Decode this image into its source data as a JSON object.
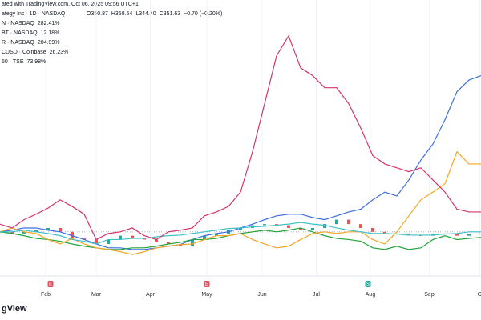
{
  "chart_data": {
    "type": "line",
    "title": "ated with TradingView.com, Oct 06, 2025 09:56 UTC+1",
    "subtitle": "ategy Inc · 1D · NASDAQ",
    "ohlc": [
      "O350.87",
      "H358.54",
      "L344.40",
      "C351.63",
      "−0.70 (−0.20%)"
    ],
    "watermark": "gView",
    "ylim": [
      -80,
      420
    ],
    "xlim": [
      0,
      40
    ],
    "xticks": [
      {
        "value": 3.8,
        "label": "Feb"
      },
      {
        "value": 8,
        "label": "Mar"
      },
      {
        "value": 12.5,
        "label": "Apr"
      },
      {
        "value": 17.2,
        "label": "May"
      },
      {
        "value": 21.8,
        "label": "Jun"
      },
      {
        "value": 26.3,
        "label": "Jul"
      },
      {
        "value": 30.8,
        "label": "Aug"
      },
      {
        "value": 35.7,
        "label": "Sep"
      },
      {
        "value": 39.9,
        "label": "O"
      }
    ],
    "events": [
      {
        "x": 4.2,
        "label": "E",
        "color": "#e0525e"
      },
      {
        "x": 17.2,
        "label": "E",
        "color": "#e0525e"
      },
      {
        "x": 30.6,
        "label": "S",
        "color": "#26a69a"
      }
    ],
    "series": [
      {
        "name": "N · NASDAQ",
        "change": "282.41%",
        "color": "#3d6ee0",
        "values": [
          0,
          3,
          7,
          7,
          3,
          0,
          -7,
          -14,
          -22,
          -29,
          -29,
          -32,
          -32,
          -29,
          -26,
          -23,
          -14,
          -7,
          -3,
          0,
          7,
          14,
          22,
          29,
          32,
          32,
          26,
          22,
          29,
          36,
          41,
          58,
          72,
          65,
          94,
          130,
          159,
          203,
          254,
          275,
          283
        ]
      },
      {
        "name": "BT · NASDAQ",
        "change": "12.18%",
        "color": "#22a33a",
        "values": [
          0,
          -3,
          -7,
          -12,
          -14,
          -17,
          -22,
          -26,
          -29,
          -32,
          -32,
          -29,
          -29,
          -26,
          -22,
          -19,
          -14,
          -14,
          -12,
          -7,
          -3,
          0,
          3,
          0,
          3,
          7,
          0,
          -7,
          -12,
          -14,
          -17,
          -29,
          -32,
          -26,
          -32,
          -29,
          -14,
          -7,
          -14,
          -12,
          -10
        ]
      },
      {
        "name": "R · NASDAQ",
        "change": "204.99%",
        "color": "#f5a623",
        "values": [
          0,
          7,
          0,
          -3,
          -14,
          -22,
          -12,
          -22,
          -29,
          -32,
          -36,
          -41,
          -36,
          -29,
          -26,
          -23,
          -22,
          -14,
          -7,
          -7,
          -3,
          -14,
          -22,
          -29,
          -26,
          -14,
          -3,
          0,
          -3,
          0,
          0,
          -14,
          -22,
          0,
          29,
          58,
          72,
          87,
          145,
          123,
          123
        ]
      },
      {
        "name": "CUSD · Coinbase",
        "change": "26.23%",
        "color": "#3fc1c9",
        "values": [
          0,
          0,
          3,
          0,
          -3,
          -7,
          -14,
          -17,
          -22,
          -14,
          -14,
          -12,
          -12,
          -9,
          -7,
          -6,
          -3,
          0,
          3,
          6,
          7,
          9,
          10,
          12,
          14,
          17,
          14,
          12,
          7,
          3,
          0,
          -3,
          -3,
          -4,
          -6,
          -6,
          -6,
          -4,
          -3,
          0,
          0
        ]
      },
      {
        "name": "50 · TSE",
        "change": "73.98%",
        "color": "#d6336c",
        "values": [
          14,
          7,
          22,
          32,
          43,
          58,
          46,
          32,
          -14,
          -3,
          0,
          7,
          -7,
          -14,
          0,
          3,
          7,
          29,
          36,
          46,
          72,
          145,
          232,
          319,
          355,
          297,
          283,
          261,
          261,
          232,
          188,
          138,
          123,
          116,
          109,
          116,
          94,
          72,
          41,
          36,
          36
        ]
      }
    ],
    "main": {
      "up_color": "#26a69a",
      "down_color": "#ef5350",
      "values": [
        0,
        -3,
        0,
        3,
        7,
        0,
        -12,
        -14,
        -22,
        -14,
        -7,
        -12,
        -14,
        -19,
        -22,
        -26,
        -14,
        -7,
        -3,
        3,
        7,
        12,
        14,
        12,
        7,
        3,
        7,
        14,
        22,
        14,
        7,
        0,
        -4,
        -3,
        -6,
        -7,
        -4,
        -3,
        -7,
        -4,
        -3
      ]
    },
    "zero_line": true
  }
}
